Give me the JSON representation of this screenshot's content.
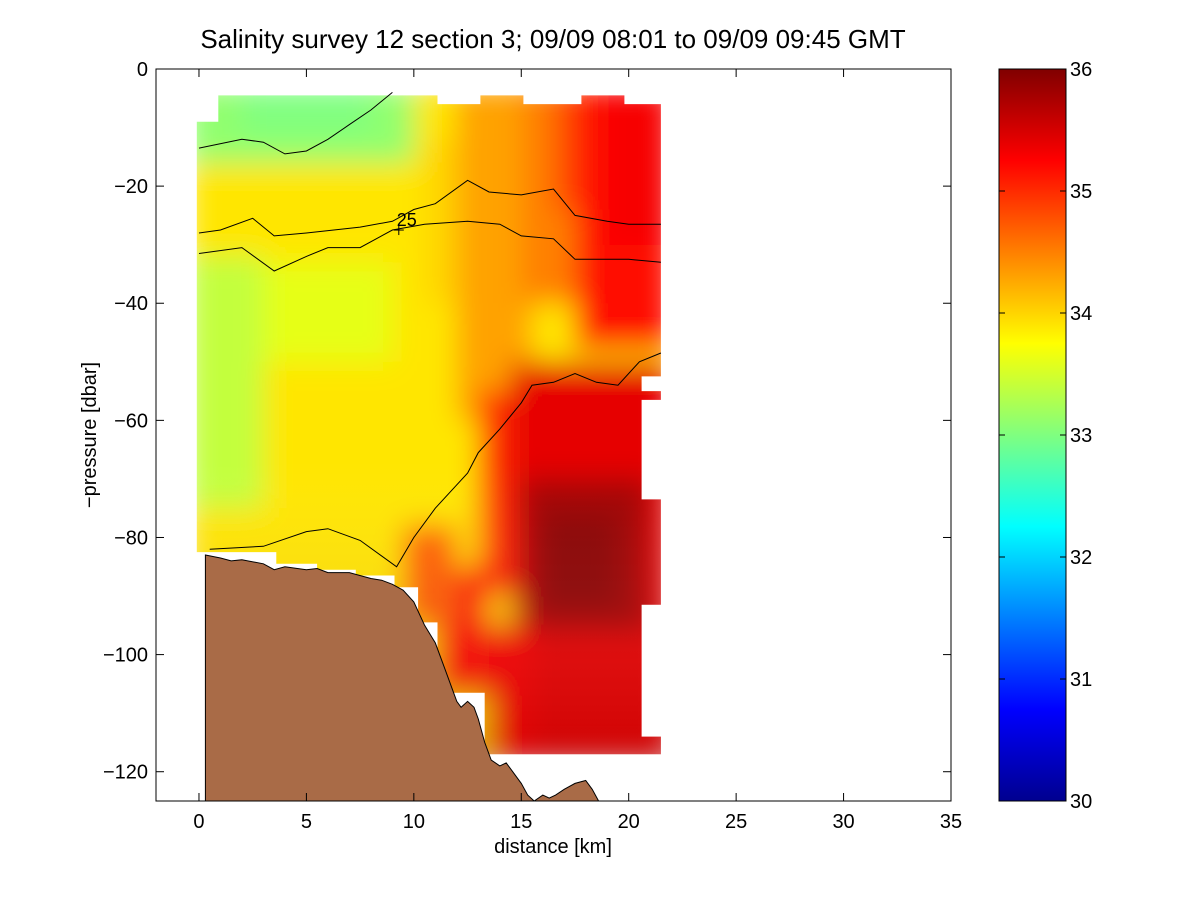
{
  "chart_data": [
    {
      "type": "heatmap",
      "title": "Salinity survey 12 section 3; 09/09 08:01 to 09/09 09:45 GMT",
      "xlabel": "distance [km]",
      "ylabel": "−pressure [dbar]",
      "xlim": [
        -2,
        35
      ],
      "ylim": [
        -125,
        0
      ],
      "xticks": [
        0,
        5,
        10,
        15,
        20,
        25,
        30,
        35
      ],
      "yticks": [
        0,
        -20,
        -40,
        -60,
        -80,
        -100,
        -120
      ],
      "ytick_labels": [
        "0",
        "−20",
        "−40",
        "−60",
        "−80",
        "−100",
        "−120"
      ],
      "grid": false,
      "colormap": "jet",
      "clim": [
        30,
        36
      ],
      "field_description": "filled contours of salinity vs distance and depth; fresher (about 33) surface water near 0-10 km, saltier (35-36) water offshore and at depth beyond 15 km",
      "contours": [
        {
          "points": [
            [
              0,
              -13.5
            ],
            [
              2,
              -12
            ],
            [
              3,
              -12.5
            ],
            [
              4,
              -14.5
            ],
            [
              5,
              -14
            ],
            [
              6,
              -12
            ],
            [
              7,
              -9.5
            ],
            [
              8,
              -7
            ],
            [
              9,
              -4
            ]
          ]
        },
        {
          "label": "25",
          "label_at": [
            9.3,
            -27.5
          ],
          "points": [
            [
              0,
              -28
            ],
            [
              1,
              -27.5
            ],
            [
              2.5,
              -25.5
            ],
            [
              3.5,
              -28.5
            ],
            [
              5,
              -28
            ],
            [
              7.5,
              -27
            ],
            [
              9,
              -26
            ],
            [
              10,
              -24
            ],
            [
              11,
              -23
            ],
            [
              12.5,
              -19
            ],
            [
              13.5,
              -21
            ],
            [
              15,
              -21.5
            ],
            [
              16.5,
              -20.5
            ],
            [
              17.5,
              -25
            ],
            [
              19,
              -26
            ],
            [
              20,
              -26.5
            ],
            [
              21.5,
              -26.5
            ]
          ]
        },
        {
          "points": [
            [
              0,
              -31.5
            ],
            [
              2,
              -30.5
            ],
            [
              3.5,
              -34.5
            ],
            [
              5,
              -32
            ],
            [
              6,
              -30.5
            ],
            [
              7.5,
              -30.5
            ],
            [
              9,
              -27.5
            ],
            [
              10.5,
              -26.5
            ],
            [
              12.5,
              -26
            ],
            [
              14,
              -26.5
            ],
            [
              15,
              -28.5
            ],
            [
              16.5,
              -29
            ],
            [
              17.5,
              -32.5
            ],
            [
              20,
              -32.5
            ],
            [
              21.5,
              -33
            ]
          ]
        },
        {
          "points": [
            [
              0.5,
              -82
            ],
            [
              3,
              -81.5
            ],
            [
              5,
              -79
            ],
            [
              6,
              -78.5
            ],
            [
              7.5,
              -80.5
            ],
            [
              9.2,
              -85
            ],
            [
              10,
              -80
            ],
            [
              11,
              -75
            ],
            [
              12,
              -71
            ],
            [
              12.5,
              -69
            ],
            [
              13,
              -65.5
            ],
            [
              14,
              -61.5
            ],
            [
              15,
              -57
            ],
            [
              15.5,
              -54
            ],
            [
              16.5,
              -53.5
            ],
            [
              17.5,
              -52
            ],
            [
              18.5,
              -53.5
            ],
            [
              19.5,
              -54
            ],
            [
              20.5,
              -50
            ],
            [
              21.5,
              -48.5
            ]
          ]
        }
      ],
      "seabed": {
        "fill_color": "#a96b47",
        "profile": [
          [
            0.3,
            -125
          ],
          [
            0.3,
            -83
          ],
          [
            1,
            -83.5
          ],
          [
            1.5,
            -84
          ],
          [
            2,
            -83.8
          ],
          [
            3,
            -84.5
          ],
          [
            3.5,
            -85.5
          ],
          [
            4,
            -85
          ],
          [
            5,
            -85.5
          ],
          [
            5.5,
            -85.3
          ],
          [
            6,
            -86
          ],
          [
            7,
            -86
          ],
          [
            8,
            -87
          ],
          [
            8.5,
            -87.3
          ],
          [
            9,
            -88
          ],
          [
            9.5,
            -89
          ],
          [
            10,
            -91
          ],
          [
            10.5,
            -95
          ],
          [
            11,
            -98
          ],
          [
            11.2,
            -100
          ],
          [
            11.5,
            -103
          ],
          [
            11.8,
            -106
          ],
          [
            12,
            -108
          ],
          [
            12.2,
            -109
          ],
          [
            12.5,
            -108
          ],
          [
            12.8,
            -109
          ],
          [
            13,
            -111
          ],
          [
            13.3,
            -115
          ],
          [
            13.6,
            -118
          ],
          [
            14,
            -119
          ],
          [
            14.3,
            -118.5
          ],
          [
            14.6,
            -120
          ],
          [
            15,
            -122
          ],
          [
            15.3,
            -124
          ],
          [
            15.6,
            -125
          ],
          [
            16,
            -124
          ],
          [
            16.3,
            -124.5
          ],
          [
            16.6,
            -124
          ],
          [
            17,
            -123
          ],
          [
            17.5,
            -122
          ],
          [
            18,
            -121.5
          ],
          [
            18.3,
            -123
          ],
          [
            18.6,
            -125
          ]
        ]
      }
    },
    {
      "type": "colorbar",
      "colormap": "jet",
      "range": [
        30,
        36
      ],
      "ticks": [
        30,
        31,
        32,
        33,
        34,
        35,
        36
      ]
    }
  ]
}
